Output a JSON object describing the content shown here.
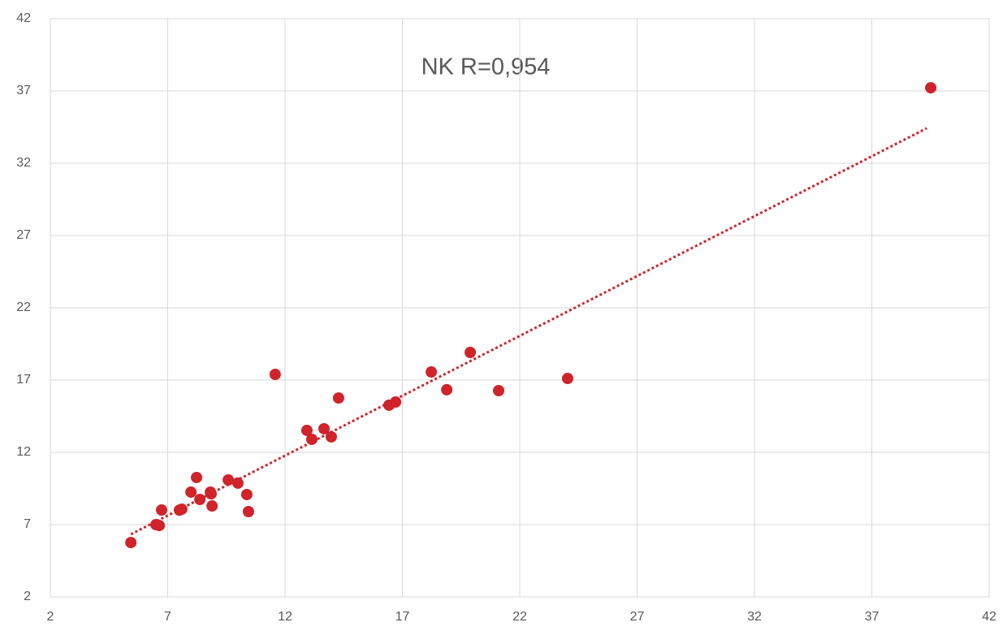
{
  "chart_data": {
    "type": "scatter",
    "annotation": "NK  R=0,954",
    "series": [
      {
        "color": "#d0232a",
        "x": [
          5.43,
          6.5,
          6.64,
          6.74,
          7.5,
          7.6,
          7.99,
          8.23,
          8.37,
          8.82,
          8.89,
          8.85,
          9.58,
          9.99,
          10.37,
          10.44,
          11.58,
          12.93,
          13.14,
          13.66,
          13.97,
          14.28,
          16.43,
          16.71,
          18.23,
          18.89,
          19.89,
          21.1,
          24.04,
          39.51
        ],
        "values": [
          5.76,
          7.0,
          6.94,
          8.01,
          8.0,
          8.07,
          9.25,
          10.26,
          8.74,
          9.25,
          8.29,
          9.13,
          10.09,
          9.87,
          9.08,
          7.9,
          17.39,
          13.52,
          12.9,
          13.63,
          13.07,
          15.76,
          15.26,
          15.48,
          17.56,
          16.33,
          18.91,
          16.27,
          17.11,
          37.22
        ]
      }
    ],
    "trendline": {
      "color": "#d0232a",
      "style": "dotted",
      "x": [
        5.43,
        39.34
      ],
      "values": [
        6.33,
        34.42
      ]
    },
    "xlim": [
      2,
      42
    ],
    "xticks": [
      2,
      7,
      12,
      17,
      22,
      27,
      32,
      37,
      42
    ],
    "ylim": [
      2,
      42
    ],
    "yticks": [
      2,
      7,
      12,
      17,
      22,
      27,
      32,
      37,
      42
    ],
    "grid": true
  }
}
